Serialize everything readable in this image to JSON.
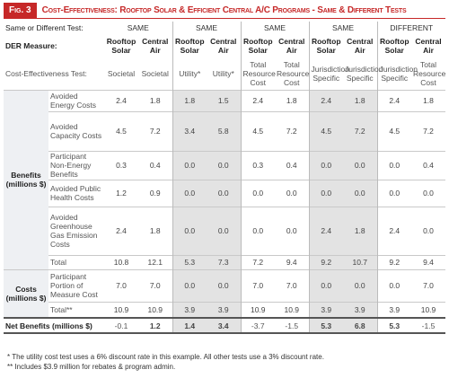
{
  "header": {
    "fig": "Fig. 3",
    "title": "Cost-Effectiveness: Rooftop Solar & Efficient Central A/C Programs - Same & Different Tests"
  },
  "table": {
    "test_row": {
      "label": "Same or Different Test:",
      "groups": [
        "SAME",
        "SAME",
        "SAME",
        "SAME",
        "DIFFERENT"
      ]
    },
    "measure_row": {
      "label": "DER Measure:",
      "cells": [
        "Rooftop Solar",
        "Central Air",
        "Rooftop Solar",
        "Central Air",
        "Rooftop Solar",
        "Central Air",
        "Rooftop Solar",
        "Central Air",
        "Rooftop Solar",
        "Central Air"
      ]
    },
    "test_name_row": {
      "label": "Cost-Effectiveness Test:",
      "cells": [
        "Societal",
        "Societal",
        "Utility*",
        "Utility*",
        "Total Resource Cost",
        "Total Resource Cost",
        "Jurisdiction Specific",
        "Jurisdiction Specific",
        "Jurisdiction Specific",
        "Total Resource Cost"
      ]
    },
    "sections": [
      {
        "label": "Benefits (millions $)",
        "rows": [
          {
            "label": "Avoided Energy Costs",
            "values": [
              "2.4",
              "1.8",
              "1.8",
              "1.5",
              "2.4",
              "1.8",
              "2.4",
              "1.8",
              "2.4",
              "1.8"
            ]
          },
          {
            "label": "Avoided Capacity Costs",
            "values": [
              "4.5",
              "7.2",
              "3.4",
              "5.8",
              "4.5",
              "7.2",
              "4.5",
              "7.2",
              "4.5",
              "7.2"
            ]
          },
          {
            "label": "Participant Non-Energy Benefits",
            "values": [
              "0.3",
              "0.4",
              "0.0",
              "0.0",
              "0.3",
              "0.4",
              "0.0",
              "0.0",
              "0.0",
              "0.4"
            ]
          },
          {
            "label": "Avoided Public Health Costs",
            "values": [
              "1.2",
              "0.9",
              "0.0",
              "0.0",
              "0.0",
              "0.0",
              "0.0",
              "0.0",
              "0.0",
              "0.0"
            ]
          },
          {
            "label": "Avoided Greenhouse Gas Emission Costs",
            "values": [
              "2.4",
              "1.8",
              "0.0",
              "0.0",
              "0.0",
              "0.0",
              "2.4",
              "1.8",
              "2.4",
              "0.0"
            ]
          },
          {
            "label": "Total",
            "values": [
              "10.8",
              "12.1",
              "5.3",
              "7.3",
              "7.2",
              "9.4",
              "9.2",
              "10.7",
              "9.2",
              "9.4"
            ]
          }
        ]
      },
      {
        "label": "Costs (millions $)",
        "rows": [
          {
            "label": "Participant Portion of Measure Cost",
            "values": [
              "7.0",
              "7.0",
              "0.0",
              "0.0",
              "7.0",
              "7.0",
              "0.0",
              "0.0",
              "0.0",
              "7.0"
            ]
          },
          {
            "label": "Total**",
            "values": [
              "10.9",
              "10.9",
              "3.9",
              "3.9",
              "10.9",
              "10.9",
              "3.9",
              "3.9",
              "3.9",
              "10.9"
            ]
          }
        ]
      }
    ],
    "net": {
      "label": "Net Benefits (millions $)",
      "values": [
        "-0.1",
        "1.2",
        "1.4",
        "3.4",
        "-3.7",
        "-1.5",
        "5.3",
        "6.8",
        "5.3",
        "-1.5"
      ]
    }
  },
  "footnotes": [
    "* The utility cost test uses a 6% discount rate in this example. All other tests use a 3% discount rate.",
    "** Includes $3.9 million for rebates & program admin."
  ]
}
